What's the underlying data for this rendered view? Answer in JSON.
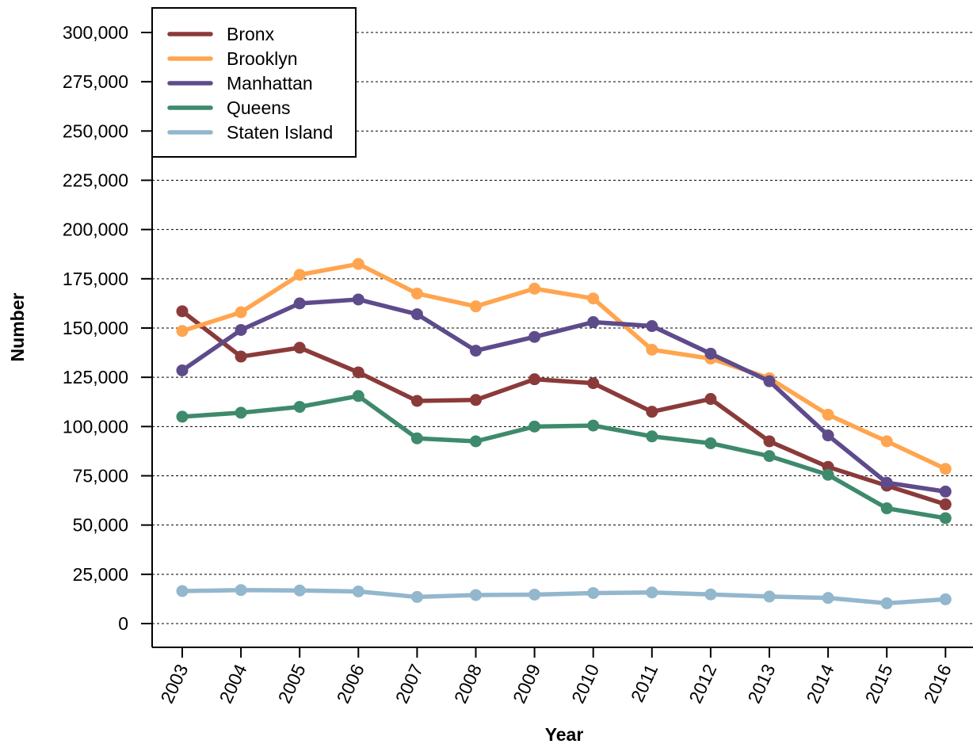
{
  "chart_data": {
    "type": "line",
    "xlabel": "Year",
    "ylabel": "Number",
    "ylim": [
      0,
      300000
    ],
    "yticks": [
      0,
      25000,
      50000,
      75000,
      100000,
      125000,
      150000,
      175000,
      200000,
      225000,
      250000,
      275000,
      300000
    ],
    "ytick_labels": [
      "0",
      "25,000",
      "50,000",
      "75,000",
      "100,000",
      "125,000",
      "150,000",
      "175,000",
      "200,000",
      "225,000",
      "250,000",
      "275,000",
      "300,000"
    ],
    "x": [
      "2003",
      "2004",
      "2005",
      "2006",
      "2007",
      "2008",
      "2009",
      "2010",
      "2011",
      "2012",
      "2013",
      "2014",
      "2015",
      "2016"
    ],
    "grid": "horizontal-dotted",
    "legend_position": "top-left",
    "series": [
      {
        "name": "Bronx",
        "color": "#8b3a3a",
        "values": [
          158500,
          135500,
          140000,
          127500,
          113000,
          113500,
          124000,
          122000,
          107500,
          114000,
          92500,
          79500,
          70000,
          60500
        ]
      },
      {
        "name": "Brooklyn",
        "color": "#ffa54f",
        "values": [
          148500,
          158000,
          177000,
          182500,
          167500,
          161000,
          170000,
          165000,
          139000,
          134500,
          124500,
          106000,
          92500,
          78500
        ]
      },
      {
        "name": "Manhattan",
        "color": "#5e4b8b",
        "values": [
          128500,
          149000,
          162500,
          164500,
          157000,
          138500,
          145500,
          153000,
          151000,
          137000,
          123000,
          95500,
          71500,
          67000
        ]
      },
      {
        "name": "Queens",
        "color": "#3e8a6c",
        "values": [
          105000,
          107000,
          110000,
          115500,
          94000,
          92500,
          100000,
          100500,
          95000,
          91500,
          85000,
          75500,
          58500,
          53500
        ]
      },
      {
        "name": "Staten Island",
        "color": "#93b7cd",
        "values": [
          16500,
          17000,
          16800,
          16300,
          13500,
          14500,
          14700,
          15500,
          15800,
          14800,
          13700,
          13000,
          10300,
          12300
        ]
      }
    ]
  }
}
